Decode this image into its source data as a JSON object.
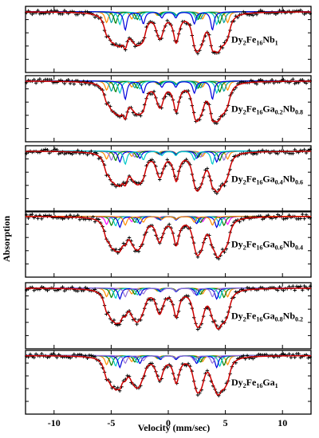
{
  "chart_data": {
    "type": "line",
    "xlabel": "Velocity (mm/sec)",
    "ylabel": "Absorption",
    "xlim": [
      -12.5,
      12.5
    ],
    "x_ticks": [
      -10,
      -5,
      0,
      5,
      10
    ],
    "x_tick_labels": [
      "-10",
      "-5",
      "0",
      "5",
      "10"
    ],
    "grid": false,
    "panels": [
      {
        "label_parts": [
          [
            "Dy",
            ""
          ],
          [
            "2",
            "sub"
          ],
          [
            "Fe",
            ""
          ],
          [
            "16",
            "sub"
          ],
          [
            "Nb",
            ""
          ],
          [
            "1",
            "sub"
          ]
        ],
        "data_color": "#000000",
        "fit_color": "#cc0000",
        "sextets": [
          {
            "color": "#ff8c00",
            "center": -0.1,
            "split": 1.0,
            "depth": 0.3
          },
          {
            "color": "#00a0a0",
            "center": -0.05,
            "split": 0.93,
            "depth": 0.3
          },
          {
            "color": "#008000",
            "center": -0.05,
            "split": 0.86,
            "depth": 0.32
          },
          {
            "color": "#00c8c8",
            "center": 0.0,
            "split": 0.8,
            "depth": 0.35
          },
          {
            "color": "#0000dd",
            "center": 0.05,
            "split": 0.72,
            "depth": 0.5
          }
        ]
      },
      {
        "label_parts": [
          [
            "Dy",
            ""
          ],
          [
            "2",
            "sub"
          ],
          [
            "Fe",
            ""
          ],
          [
            "16",
            "sub"
          ],
          [
            "Ga",
            ""
          ],
          [
            "0.2",
            "sub"
          ],
          [
            "Nb",
            ""
          ],
          [
            "0.8",
            "sub"
          ]
        ],
        "data_color": "#000000",
        "fit_color": "#cc0000",
        "sextets": [
          {
            "color": "#ff8c00",
            "center": -0.1,
            "split": 1.0,
            "depth": 0.25
          },
          {
            "color": "#00a0a0",
            "center": -0.05,
            "split": 0.93,
            "depth": 0.28
          },
          {
            "color": "#008000",
            "center": -0.05,
            "split": 0.86,
            "depth": 0.3
          },
          {
            "color": "#00c8c8",
            "center": 0.0,
            "split": 0.8,
            "depth": 0.33
          },
          {
            "color": "#0000dd",
            "center": 0.05,
            "split": 0.72,
            "depth": 0.5
          }
        ]
      },
      {
        "label_parts": [
          [
            "Dy",
            ""
          ],
          [
            "2",
            "sub"
          ],
          [
            "Fe",
            ""
          ],
          [
            "16",
            "sub"
          ],
          [
            "Ga",
            ""
          ],
          [
            "0.4",
            "sub"
          ],
          [
            "Nb",
            ""
          ],
          [
            "0.6",
            "sub"
          ]
        ],
        "data_color": "#000000",
        "fit_color": "#cc0000",
        "sextets": [
          {
            "color": "#ff8c00",
            "center": -0.1,
            "split": 1.0,
            "depth": 0.22
          },
          {
            "color": "#9370db",
            "center": -0.05,
            "split": 0.93,
            "depth": 0.25
          },
          {
            "color": "#008000",
            "center": -0.05,
            "split": 0.86,
            "depth": 0.26
          },
          {
            "color": "#0000dd",
            "center": 0.0,
            "split": 0.8,
            "depth": 0.3
          },
          {
            "color": "#00c8c8",
            "center": 0.05,
            "split": 0.72,
            "depth": 0.36
          }
        ]
      },
      {
        "label_parts": [
          [
            "Dy",
            ""
          ],
          [
            "2",
            "sub"
          ],
          [
            "Fe",
            ""
          ],
          [
            "16",
            "sub"
          ],
          [
            "Ga",
            ""
          ],
          [
            "0.6",
            "sub"
          ],
          [
            "Nb",
            ""
          ],
          [
            "0.4",
            "sub"
          ]
        ],
        "data_color": "#000000",
        "fit_color": "#cc0000",
        "sextets": [
          {
            "color": "#ff00ff",
            "center": -0.1,
            "split": 1.0,
            "depth": 0.22
          },
          {
            "color": "#008000",
            "center": -0.05,
            "split": 0.93,
            "depth": 0.25
          },
          {
            "color": "#00c8c8",
            "center": -0.05,
            "split": 0.86,
            "depth": 0.26
          },
          {
            "color": "#0000dd",
            "center": 0.0,
            "split": 0.8,
            "depth": 0.3
          },
          {
            "color": "#ff8c00",
            "center": 0.05,
            "split": 0.72,
            "depth": 0.24
          }
        ]
      },
      {
        "label_parts": [
          [
            "Dy",
            ""
          ],
          [
            "2",
            "sub"
          ],
          [
            "Fe",
            ""
          ],
          [
            "16",
            "sub"
          ],
          [
            "Ga",
            ""
          ],
          [
            "0.8",
            "sub"
          ],
          [
            "Nb",
            ""
          ],
          [
            "0.2",
            "sub"
          ]
        ],
        "data_color": "#000000",
        "fit_color": "#cc0000",
        "sextets": [
          {
            "color": "#ff8c00",
            "center": -0.1,
            "split": 1.0,
            "depth": 0.24
          },
          {
            "color": "#008000",
            "center": -0.05,
            "split": 0.93,
            "depth": 0.26
          },
          {
            "color": "#00c8c8",
            "center": -0.05,
            "split": 0.86,
            "depth": 0.28
          },
          {
            "color": "#0000dd",
            "center": 0.0,
            "split": 0.8,
            "depth": 0.3
          },
          {
            "color": "#9370db",
            "center": 0.05,
            "split": 0.72,
            "depth": 0.24
          }
        ]
      },
      {
        "label_parts": [
          [
            "Dy",
            ""
          ],
          [
            "2",
            "sub"
          ],
          [
            "Fe",
            ""
          ],
          [
            "16",
            "sub"
          ],
          [
            "Ga",
            ""
          ],
          [
            "1",
            "sub"
          ]
        ],
        "data_color": "#000000",
        "fit_color": "#cc0000",
        "sextets": [
          {
            "color": "#ff8c00",
            "center": -0.1,
            "split": 1.0,
            "depth": 0.26
          },
          {
            "color": "#008000",
            "center": -0.05,
            "split": 0.93,
            "depth": 0.28
          },
          {
            "color": "#00c8c8",
            "center": -0.05,
            "split": 0.86,
            "depth": 0.3
          },
          {
            "color": "#0000dd",
            "center": 0.0,
            "split": 0.8,
            "depth": 0.34
          },
          {
            "color": "#9370db",
            "center": 0.05,
            "split": 0.72,
            "depth": 0.22
          }
        ]
      }
    ]
  }
}
